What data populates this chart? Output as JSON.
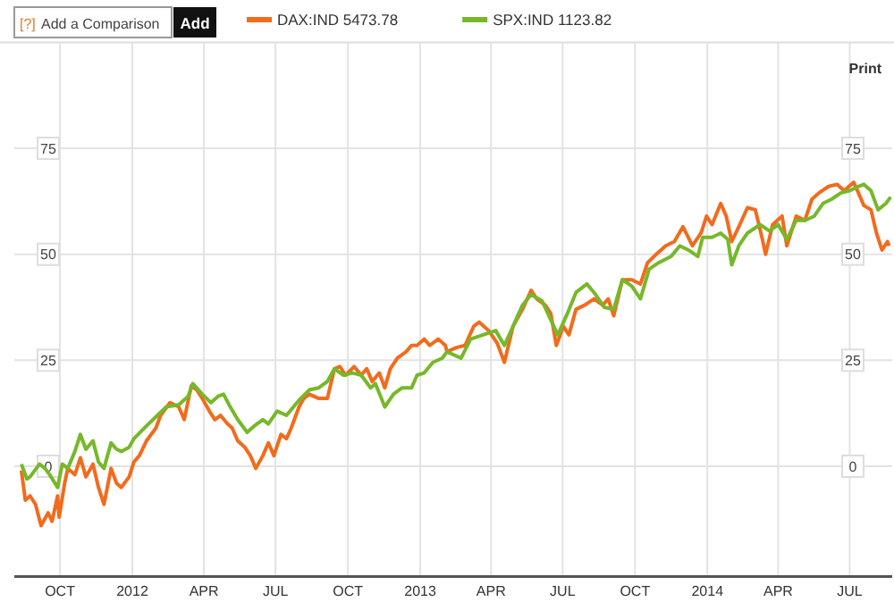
{
  "chart_data": {
    "type": "line",
    "annotations": [
      "[?]",
      "Add a Comparison",
      "Add",
      "Print"
    ],
    "xlim": [
      "2011-08-04",
      "2014-08-24"
    ],
    "xticks": [
      {
        "value": "2011-10-01",
        "label": "OCT"
      },
      {
        "value": "2012-01-01",
        "label": "2012"
      },
      {
        "value": "2012-04-01",
        "label": "APR"
      },
      {
        "value": "2012-07-01",
        "label": "JUL"
      },
      {
        "value": "2012-10-01",
        "label": "OCT"
      },
      {
        "value": "2013-01-01",
        "label": "2013"
      },
      {
        "value": "2013-04-01",
        "label": "APR"
      },
      {
        "value": "2013-07-01",
        "label": "JUL"
      },
      {
        "value": "2013-10-01",
        "label": "OCT"
      },
      {
        "value": "2014-01-01",
        "label": "2014"
      },
      {
        "value": "2014-04-01",
        "label": "APR"
      },
      {
        "value": "2014-07-01",
        "label": "JUL"
      }
    ],
    "ylim": [
      -26,
      100
    ],
    "yticks": [
      0,
      25,
      50,
      75
    ],
    "y2lim": [
      -26,
      100
    ],
    "y2ticks": [
      0,
      25,
      50,
      75
    ],
    "grid": true,
    "legend": "top left",
    "line_style": "solid",
    "series": [
      {
        "name": "DAX:IND 5473.78",
        "color": "#f26b1d",
        "x": [
          "2011-08-13",
          "2011-08-18",
          "2011-08-24",
          "2011-08-31",
          "2011-09-07",
          "2011-09-16",
          "2011-09-21",
          "2011-09-28",
          "2011-09-30",
          "2011-10-07",
          "2011-10-11",
          "2011-10-20",
          "2011-10-27",
          "2011-11-03",
          "2011-11-12",
          "2011-11-19",
          "2011-11-26",
          "2011-12-05",
          "2011-12-12",
          "2011-12-18",
          "2011-12-28",
          "2012-01-03",
          "2012-01-10",
          "2012-01-19",
          "2012-01-31",
          "2012-02-06",
          "2012-02-18",
          "2012-02-29",
          "2012-03-07",
          "2012-03-16",
          "2012-03-23",
          "2012-03-30",
          "2012-04-08",
          "2012-04-15",
          "2012-04-22",
          "2012-05-01",
          "2012-05-07",
          "2012-05-14",
          "2012-05-23",
          "2012-05-30",
          "2012-06-06",
          "2012-06-15",
          "2012-06-22",
          "2012-06-29",
          "2012-07-08",
          "2012-07-15",
          "2012-07-21",
          "2012-07-31",
          "2012-08-06",
          "2012-08-13",
          "2012-08-25",
          "2012-09-05",
          "2012-09-14",
          "2012-09-21",
          "2012-09-28",
          "2012-10-09",
          "2012-10-18",
          "2012-10-25",
          "2012-11-01",
          "2012-11-10",
          "2012-11-17",
          "2012-11-24",
          "2012-12-03",
          "2012-12-14",
          "2012-12-21",
          "2012-12-28",
          "2013-01-06",
          "2013-01-13",
          "2013-01-24",
          "2013-02-02",
          "2013-02-04",
          "2013-02-16",
          "2013-02-27",
          "2013-03-10",
          "2013-03-17",
          "2013-03-29",
          "2013-04-09",
          "2013-04-18",
          "2013-04-29",
          "2013-05-11",
          "2013-05-22",
          "2013-05-29",
          "2013-06-09",
          "2013-06-16",
          "2013-06-23",
          "2013-07-02",
          "2013-07-09",
          "2013-07-18",
          "2013-07-29",
          "2013-08-10",
          "2013-08-21",
          "2013-08-28",
          "2013-09-04",
          "2013-09-15",
          "2013-09-27",
          "2013-10-08",
          "2013-10-17",
          "2013-10-28",
          "2013-11-09",
          "2013-11-20",
          "2013-12-01",
          "2013-12-13",
          "2013-12-24",
          "2013-12-31",
          "2014-01-07",
          "2014-01-18",
          "2014-01-25",
          "2014-02-01",
          "2014-02-10",
          "2014-02-21",
          "2014-03-03",
          "2014-03-12",
          "2014-03-16",
          "2014-03-25",
          "2014-04-06",
          "2014-04-12",
          "2014-04-24",
          "2014-05-05",
          "2014-05-14",
          "2014-05-23",
          "2014-06-04",
          "2014-06-15",
          "2014-06-24",
          "2014-07-06",
          "2014-07-12",
          "2014-07-19",
          "2014-07-28",
          "2014-08-04",
          "2014-08-11",
          "2014-08-18",
          "2014-08-20"
        ],
        "values": [
          -1,
          -8,
          -7,
          -9,
          -14,
          -11,
          -13,
          -7,
          -12,
          -4,
          -0.5,
          -2,
          2,
          -2.5,
          0.5,
          -5,
          -9,
          -0.5,
          -4,
          -5,
          -2.5,
          1,
          2.5,
          6,
          9,
          12,
          15,
          14,
          11,
          19,
          18,
          16,
          13,
          11,
          12,
          10,
          9,
          6,
          4.5,
          2.5,
          -0.5,
          2.5,
          5.5,
          2.5,
          7.5,
          6.5,
          9,
          14,
          16,
          17,
          16,
          16,
          23,
          23.5,
          21.5,
          23.5,
          21.5,
          23,
          20,
          22,
          18.5,
          23,
          25.5,
          27,
          28.5,
          28.5,
          30,
          28.5,
          30,
          28.5,
          27,
          28,
          28.5,
          33,
          34,
          32,
          29,
          24.5,
          33,
          37,
          41.5,
          39.5,
          38,
          36,
          28.5,
          33,
          31,
          37,
          38,
          39.5,
          38,
          39.5,
          35.5,
          44,
          44,
          43,
          48,
          50,
          52,
          53,
          56.5,
          52,
          55,
          59,
          57,
          62,
          59,
          53,
          56.5,
          61,
          60.5,
          53.5,
          50,
          57,
          59,
          52,
          59,
          58,
          63,
          64.5,
          66,
          66.5,
          65,
          67,
          64.5,
          61.5,
          60.5,
          55,
          51,
          53,
          52
        ]
      },
      {
        "name": "SPX:IND 1123.82",
        "color": "#76b82a",
        "x": [
          "2011-08-13",
          "2011-08-20",
          "2011-08-24",
          "2011-09-05",
          "2011-09-12",
          "2011-09-18",
          "2011-09-28",
          "2011-10-04",
          "2011-10-11",
          "2011-10-20",
          "2011-10-27",
          "2011-11-03",
          "2011-11-12",
          "2011-11-19",
          "2011-11-26",
          "2011-12-05",
          "2011-12-12",
          "2011-12-18",
          "2011-12-28",
          "2012-01-03",
          "2012-01-19",
          "2012-02-02",
          "2012-02-13",
          "2012-02-29",
          "2012-03-12",
          "2012-03-18",
          "2012-03-30",
          "2012-04-10",
          "2012-04-19",
          "2012-04-26",
          "2012-05-03",
          "2012-05-14",
          "2012-05-26",
          "2012-06-04",
          "2012-06-15",
          "2012-06-22",
          "2012-07-03",
          "2012-07-15",
          "2012-07-26",
          "2012-08-02",
          "2012-08-13",
          "2012-08-25",
          "2012-09-05",
          "2012-09-14",
          "2012-09-25",
          "2012-10-07",
          "2012-10-18",
          "2012-10-30",
          "2012-11-05",
          "2012-11-17",
          "2012-11-28",
          "2012-12-09",
          "2012-12-21",
          "2012-12-28",
          "2013-01-06",
          "2013-01-17",
          "2013-01-29",
          "2013-02-04",
          "2013-02-22",
          "2013-03-06",
          "2013-03-22",
          "2013-04-07",
          "2013-04-18",
          "2013-04-29",
          "2013-05-11",
          "2013-05-22",
          "2013-06-05",
          "2013-06-16",
          "2013-06-25",
          "2013-07-07",
          "2013-07-18",
          "2013-08-01",
          "2013-08-12",
          "2013-08-23",
          "2013-09-04",
          "2013-09-15",
          "2013-09-27",
          "2013-10-08",
          "2013-10-19",
          "2013-10-31",
          "2013-11-16",
          "2013-11-27",
          "2013-12-08",
          "2013-12-20",
          "2013-12-26",
          "2014-01-07",
          "2014-01-18",
          "2014-01-27",
          "2014-02-01",
          "2014-02-10",
          "2014-02-21",
          "2014-03-09",
          "2014-03-21",
          "2014-04-01",
          "2014-04-12",
          "2014-04-24",
          "2014-05-05",
          "2014-05-17",
          "2014-05-28",
          "2014-06-08",
          "2014-06-20",
          "2014-07-01",
          "2014-07-12",
          "2014-07-19",
          "2014-07-28",
          "2014-08-06",
          "2014-08-16",
          "2014-08-22"
        ],
        "values": [
          0.5,
          -3,
          -2.5,
          0.5,
          -0.5,
          -2,
          -5,
          0.5,
          -0.5,
          3.5,
          7.5,
          4,
          6,
          1,
          -0.5,
          5.5,
          4,
          3.5,
          4.5,
          6.5,
          9.5,
          12,
          14,
          14.5,
          16.5,
          19.5,
          17,
          15,
          16.5,
          17,
          14.5,
          11,
          8,
          9.5,
          11,
          10,
          13,
          12,
          14.5,
          16,
          18,
          18.5,
          20,
          23,
          21.5,
          22,
          21.5,
          18.5,
          19.5,
          14,
          17,
          18.5,
          18.5,
          21.5,
          22,
          24.5,
          25.5,
          27,
          25.5,
          30,
          31,
          32,
          28.5,
          33,
          38,
          40.5,
          39,
          34.5,
          31,
          36,
          41,
          43,
          40.5,
          37.5,
          37,
          44,
          42.5,
          39.5,
          46.5,
          48,
          49.5,
          52,
          51,
          49.5,
          54,
          54,
          55,
          53.5,
          47.5,
          52,
          55,
          57,
          55.5,
          57,
          53.5,
          58,
          58,
          59,
          62,
          63,
          64.5,
          65,
          66,
          66.5,
          65,
          60.5,
          62,
          63.5
        ]
      }
    ]
  }
}
